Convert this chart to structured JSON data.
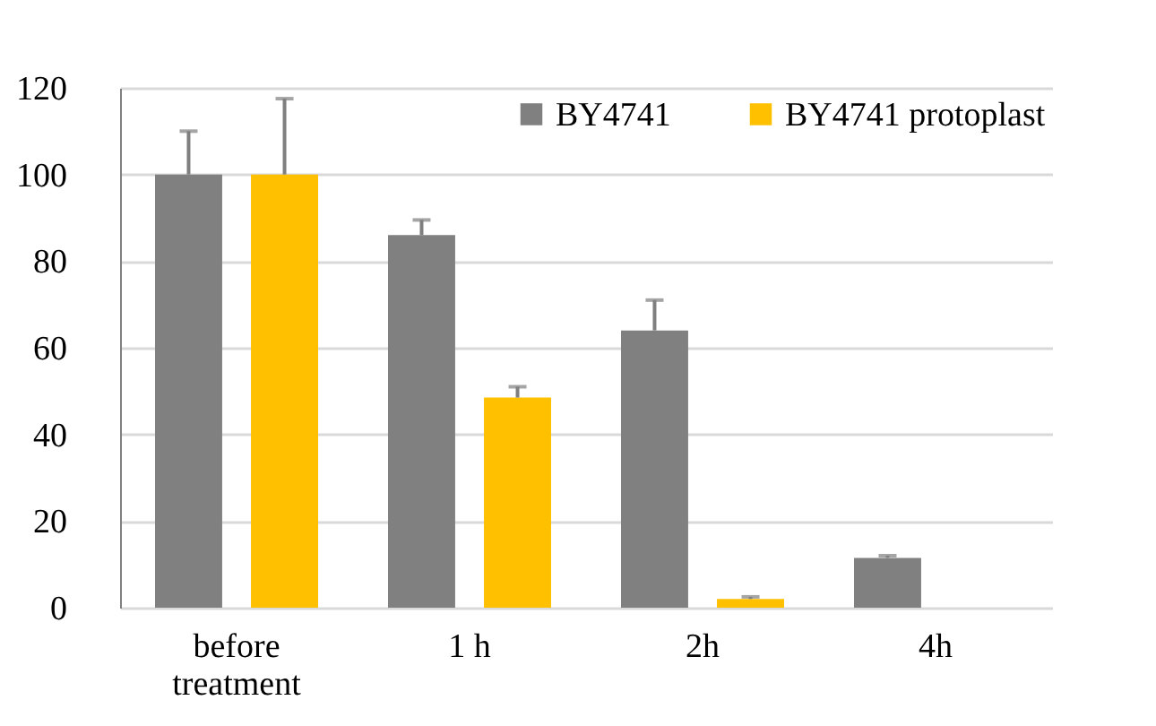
{
  "chart_data": {
    "type": "bar",
    "categories": [
      "before treatment",
      "1 h",
      "2h",
      "4h"
    ],
    "series": [
      {
        "name": "BY4741",
        "color": "#808080",
        "values": [
          100,
          86,
          64,
          11.5
        ],
        "errors": [
          [
            100,
            110
          ],
          [
            86,
            89.5
          ],
          [
            64,
            71
          ],
          [
            11.5,
            12
          ]
        ]
      },
      {
        "name": "BY4741 protoplast",
        "color": "#ffc000",
        "values": [
          100,
          48.5,
          2,
          null
        ],
        "errors": [
          [
            100,
            117.5
          ],
          [
            48.5,
            51
          ],
          [
            2,
            2.5
          ],
          null
        ]
      }
    ],
    "ylim": [
      0,
      120
    ],
    "yticks": [
      0,
      20,
      40,
      60,
      80,
      100,
      120
    ],
    "grid": "y",
    "legend": "top"
  }
}
